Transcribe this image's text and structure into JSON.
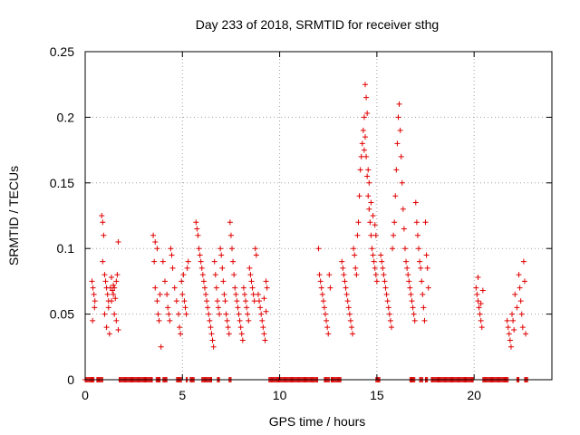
{
  "chart_data": {
    "type": "scatter",
    "title": "Day 233 of 2018, SRMTID for receiver sthg",
    "xlabel": "GPS time / hours",
    "ylabel": "SRMTID / TECUs",
    "xlim": [
      0,
      24
    ],
    "ylim": [
      0,
      0.25
    ],
    "xticks": [
      0,
      5,
      10,
      15,
      20
    ],
    "xtick_labels": [
      "0",
      "5",
      "10",
      "15",
      "20"
    ],
    "yticks": [
      0,
      0.05,
      0.1,
      0.15,
      0.2,
      0.25
    ],
    "ytick_labels": [
      "0",
      "0.05",
      "0.1",
      "0.15",
      "0.2",
      "0.25"
    ],
    "grid": true,
    "marker": "plus",
    "color": "#e00000",
    "series": [
      {
        "name": "SRMTID",
        "points": [
          [
            0.35,
            0.075
          ],
          [
            0.4,
            0.07
          ],
          [
            0.45,
            0.065
          ],
          [
            0.5,
            0.06
          ],
          [
            0.38,
            0.045
          ],
          [
            0.48,
            0.055
          ],
          [
            0.85,
            0.125
          ],
          [
            0.9,
            0.12
          ],
          [
            0.95,
            0.11
          ],
          [
            0.9,
            0.09
          ],
          [
            1.0,
            0.08
          ],
          [
            1.05,
            0.075
          ],
          [
            1.1,
            0.07
          ],
          [
            1.15,
            0.065
          ],
          [
            1.2,
            0.06
          ],
          [
            1.0,
            0.05
          ],
          [
            1.1,
            0.04
          ],
          [
            1.2,
            0.055
          ],
          [
            1.25,
            0.035
          ],
          [
            1.3,
            0.07
          ],
          [
            1.35,
            0.06
          ],
          [
            1.4,
            0.068
          ],
          [
            1.45,
            0.065
          ],
          [
            1.5,
            0.07
          ],
          [
            1.55,
            0.062
          ],
          [
            1.6,
            0.075
          ],
          [
            1.65,
            0.08
          ],
          [
            1.7,
            0.105
          ],
          [
            1.5,
            0.05
          ],
          [
            1.6,
            0.045
          ],
          [
            1.7,
            0.038
          ],
          [
            1.35,
            0.078
          ],
          [
            1.45,
            0.072
          ],
          [
            3.5,
            0.11
          ],
          [
            3.6,
            0.105
          ],
          [
            3.7,
            0.1
          ],
          [
            3.55,
            0.09
          ],
          [
            3.6,
            0.07
          ],
          [
            3.7,
            0.06
          ],
          [
            3.75,
            0.05
          ],
          [
            3.8,
            0.045
          ],
          [
            3.9,
            0.025
          ],
          [
            3.85,
            0.065
          ],
          [
            4.0,
            0.09
          ],
          [
            4.1,
            0.075
          ],
          [
            4.2,
            0.065
          ],
          [
            4.25,
            0.055
          ],
          [
            4.3,
            0.05
          ],
          [
            4.35,
            0.045
          ],
          [
            4.4,
            0.1
          ],
          [
            4.45,
            0.095
          ],
          [
            4.5,
            0.085
          ],
          [
            4.6,
            0.07
          ],
          [
            4.7,
            0.06
          ],
          [
            4.8,
            0.05
          ],
          [
            4.85,
            0.04
          ],
          [
            4.9,
            0.035
          ],
          [
            4.95,
            0.075
          ],
          [
            5.0,
            0.065
          ],
          [
            5.05,
            0.08
          ],
          [
            5.1,
            0.06
          ],
          [
            5.15,
            0.055
          ],
          [
            5.2,
            0.05
          ],
          [
            5.25,
            0.085
          ],
          [
            5.3,
            0.09
          ],
          [
            5.7,
            0.12
          ],
          [
            5.75,
            0.115
          ],
          [
            5.8,
            0.11
          ],
          [
            5.85,
            0.1
          ],
          [
            5.9,
            0.095
          ],
          [
            5.95,
            0.09
          ],
          [
            6.0,
            0.085
          ],
          [
            6.05,
            0.08
          ],
          [
            6.1,
            0.075
          ],
          [
            6.15,
            0.07
          ],
          [
            6.2,
            0.065
          ],
          [
            6.25,
            0.06
          ],
          [
            6.3,
            0.055
          ],
          [
            6.35,
            0.05
          ],
          [
            6.4,
            0.045
          ],
          [
            6.45,
            0.04
          ],
          [
            6.5,
            0.035
          ],
          [
            6.55,
            0.03
          ],
          [
            6.6,
            0.025
          ],
          [
            6.65,
            0.09
          ],
          [
            6.7,
            0.08
          ],
          [
            6.75,
            0.07
          ],
          [
            6.8,
            0.06
          ],
          [
            6.85,
            0.055
          ],
          [
            6.9,
            0.05
          ],
          [
            6.95,
            0.1
          ],
          [
            7.0,
            0.095
          ],
          [
            7.05,
            0.085
          ],
          [
            7.1,
            0.075
          ],
          [
            7.15,
            0.065
          ],
          [
            7.2,
            0.06
          ],
          [
            7.25,
            0.05
          ],
          [
            7.3,
            0.045
          ],
          [
            7.35,
            0.04
          ],
          [
            7.4,
            0.035
          ],
          [
            7.45,
            0.12
          ],
          [
            7.5,
            0.11
          ],
          [
            7.55,
            0.1
          ],
          [
            7.6,
            0.09
          ],
          [
            7.65,
            0.08
          ],
          [
            7.7,
            0.07
          ],
          [
            7.75,
            0.065
          ],
          [
            7.8,
            0.06
          ],
          [
            7.85,
            0.055
          ],
          [
            7.9,
            0.05
          ],
          [
            7.95,
            0.045
          ],
          [
            8.0,
            0.04
          ],
          [
            8.05,
            0.035
          ],
          [
            8.1,
            0.03
          ],
          [
            8.15,
            0.07
          ],
          [
            8.2,
            0.065
          ],
          [
            8.25,
            0.06
          ],
          [
            8.3,
            0.055
          ],
          [
            8.35,
            0.05
          ],
          [
            8.4,
            0.045
          ],
          [
            8.45,
            0.085
          ],
          [
            8.5,
            0.08
          ],
          [
            8.55,
            0.075
          ],
          [
            8.6,
            0.07
          ],
          [
            8.65,
            0.065
          ],
          [
            8.7,
            0.06
          ],
          [
            8.75,
            0.1
          ],
          [
            8.8,
            0.095
          ],
          [
            8.9,
            0.065
          ],
          [
            8.95,
            0.06
          ],
          [
            9.0,
            0.055
          ],
          [
            9.05,
            0.05
          ],
          [
            9.1,
            0.045
          ],
          [
            9.15,
            0.04
          ],
          [
            9.2,
            0.035
          ],
          [
            9.25,
            0.03
          ],
          [
            9.3,
            0.075
          ],
          [
            9.35,
            0.07
          ],
          [
            9.2,
            0.062
          ],
          [
            9.3,
            0.052
          ],
          [
            12.0,
            0.1
          ],
          [
            12.05,
            0.08
          ],
          [
            12.1,
            0.075
          ],
          [
            12.15,
            0.07
          ],
          [
            12.2,
            0.065
          ],
          [
            12.25,
            0.06
          ],
          [
            12.3,
            0.055
          ],
          [
            12.35,
            0.05
          ],
          [
            12.4,
            0.045
          ],
          [
            12.45,
            0.04
          ],
          [
            12.5,
            0.035
          ],
          [
            12.55,
            0.08
          ],
          [
            12.6,
            0.07
          ],
          [
            13.2,
            0.09
          ],
          [
            13.25,
            0.085
          ],
          [
            13.3,
            0.08
          ],
          [
            13.35,
            0.075
          ],
          [
            13.4,
            0.07
          ],
          [
            13.45,
            0.065
          ],
          [
            13.5,
            0.06
          ],
          [
            13.55,
            0.055
          ],
          [
            13.6,
            0.05
          ],
          [
            13.65,
            0.045
          ],
          [
            13.7,
            0.04
          ],
          [
            13.75,
            0.035
          ],
          [
            13.8,
            0.1
          ],
          [
            13.85,
            0.095
          ],
          [
            13.9,
            0.085
          ],
          [
            13.95,
            0.08
          ],
          [
            14.0,
            0.11
          ],
          [
            14.05,
            0.12
          ],
          [
            14.1,
            0.14
          ],
          [
            14.15,
            0.16
          ],
          [
            14.2,
            0.17
          ],
          [
            14.25,
            0.18
          ],
          [
            14.3,
            0.19
          ],
          [
            14.35,
            0.2
          ],
          [
            14.4,
            0.185
          ],
          [
            14.45,
            0.17
          ],
          [
            14.5,
            0.155
          ],
          [
            14.55,
            0.14
          ],
          [
            14.6,
            0.13
          ],
          [
            14.65,
            0.12
          ],
          [
            14.7,
            0.11
          ],
          [
            14.75,
            0.1
          ],
          [
            14.8,
            0.095
          ],
          [
            14.85,
            0.09
          ],
          [
            14.9,
            0.085
          ],
          [
            14.95,
            0.08
          ],
          [
            15.0,
            0.075
          ],
          [
            14.4,
            0.225
          ],
          [
            14.45,
            0.215
          ],
          [
            14.5,
            0.203
          ],
          [
            14.35,
            0.175
          ],
          [
            14.55,
            0.16
          ],
          [
            14.6,
            0.15
          ],
          [
            14.7,
            0.135
          ],
          [
            14.8,
            0.125
          ],
          [
            14.9,
            0.118
          ],
          [
            14.95,
            0.11
          ],
          [
            15.2,
            0.095
          ],
          [
            15.25,
            0.09
          ],
          [
            15.3,
            0.085
          ],
          [
            15.35,
            0.08
          ],
          [
            15.4,
            0.075
          ],
          [
            15.45,
            0.07
          ],
          [
            15.5,
            0.065
          ],
          [
            15.55,
            0.06
          ],
          [
            15.6,
            0.055
          ],
          [
            15.65,
            0.05
          ],
          [
            15.7,
            0.045
          ],
          [
            15.75,
            0.04
          ],
          [
            15.8,
            0.1
          ],
          [
            15.85,
            0.11
          ],
          [
            15.9,
            0.12
          ],
          [
            15.95,
            0.14
          ],
          [
            16.0,
            0.16
          ],
          [
            16.05,
            0.18
          ],
          [
            16.1,
            0.2
          ],
          [
            16.15,
            0.21
          ],
          [
            16.2,
            0.19
          ],
          [
            16.25,
            0.17
          ],
          [
            16.3,
            0.15
          ],
          [
            16.35,
            0.13
          ],
          [
            16.4,
            0.115
          ],
          [
            16.45,
            0.1
          ],
          [
            16.5,
            0.09
          ],
          [
            16.55,
            0.085
          ],
          [
            16.6,
            0.08
          ],
          [
            16.65,
            0.075
          ],
          [
            16.7,
            0.07
          ],
          [
            16.75,
            0.065
          ],
          [
            16.8,
            0.06
          ],
          [
            16.85,
            0.055
          ],
          [
            16.9,
            0.05
          ],
          [
            16.95,
            0.045
          ],
          [
            17.0,
            0.135
          ],
          [
            17.05,
            0.12
          ],
          [
            17.1,
            0.11
          ],
          [
            17.15,
            0.1
          ],
          [
            17.2,
            0.09
          ],
          [
            17.25,
            0.085
          ],
          [
            17.3,
            0.075
          ],
          [
            17.35,
            0.065
          ],
          [
            17.4,
            0.055
          ],
          [
            17.45,
            0.045
          ],
          [
            17.5,
            0.12
          ],
          [
            17.55,
            0.095
          ],
          [
            17.6,
            0.085
          ],
          [
            17.65,
            0.07
          ],
          [
            20.1,
            0.07
          ],
          [
            20.15,
            0.065
          ],
          [
            20.2,
            0.06
          ],
          [
            20.25,
            0.055
          ],
          [
            20.3,
            0.05
          ],
          [
            20.35,
            0.045
          ],
          [
            20.4,
            0.04
          ],
          [
            20.45,
            0.068
          ],
          [
            20.2,
            0.078
          ],
          [
            20.35,
            0.058
          ],
          [
            21.7,
            0.045
          ],
          [
            21.75,
            0.04
          ],
          [
            21.8,
            0.035
          ],
          [
            21.85,
            0.03
          ],
          [
            21.9,
            0.025
          ],
          [
            21.95,
            0.05
          ],
          [
            22.0,
            0.045
          ],
          [
            22.05,
            0.038
          ],
          [
            22.1,
            0.065
          ],
          [
            22.2,
            0.055
          ],
          [
            22.3,
            0.08
          ],
          [
            22.35,
            0.07
          ],
          [
            22.4,
            0.06
          ],
          [
            22.45,
            0.05
          ],
          [
            22.5,
            0.04
          ],
          [
            22.55,
            0.09
          ],
          [
            22.6,
            0.075
          ],
          [
            22.65,
            0.035
          ]
        ]
      }
    ],
    "zero_intervals": [
      [
        0.0,
        0.45
      ],
      [
        0.6,
        0.9
      ],
      [
        1.75,
        3.45
      ],
      [
        3.65,
        3.85
      ],
      [
        4.0,
        4.2
      ],
      [
        4.7,
        4.95
      ],
      [
        5.2,
        5.25
      ],
      [
        5.4,
        5.6
      ],
      [
        6.0,
        6.5
      ],
      [
        6.8,
        6.9
      ],
      [
        7.4,
        7.5
      ],
      [
        9.45,
        11.95
      ],
      [
        12.3,
        12.55
      ],
      [
        12.65,
        13.15
      ],
      [
        14.95,
        15.15
      ],
      [
        16.7,
        16.95
      ],
      [
        17.2,
        17.35
      ],
      [
        17.5,
        17.6
      ],
      [
        17.8,
        19.95
      ],
      [
        20.45,
        21.75
      ],
      [
        22.2,
        22.3
      ],
      [
        22.6,
        22.75
      ]
    ]
  }
}
